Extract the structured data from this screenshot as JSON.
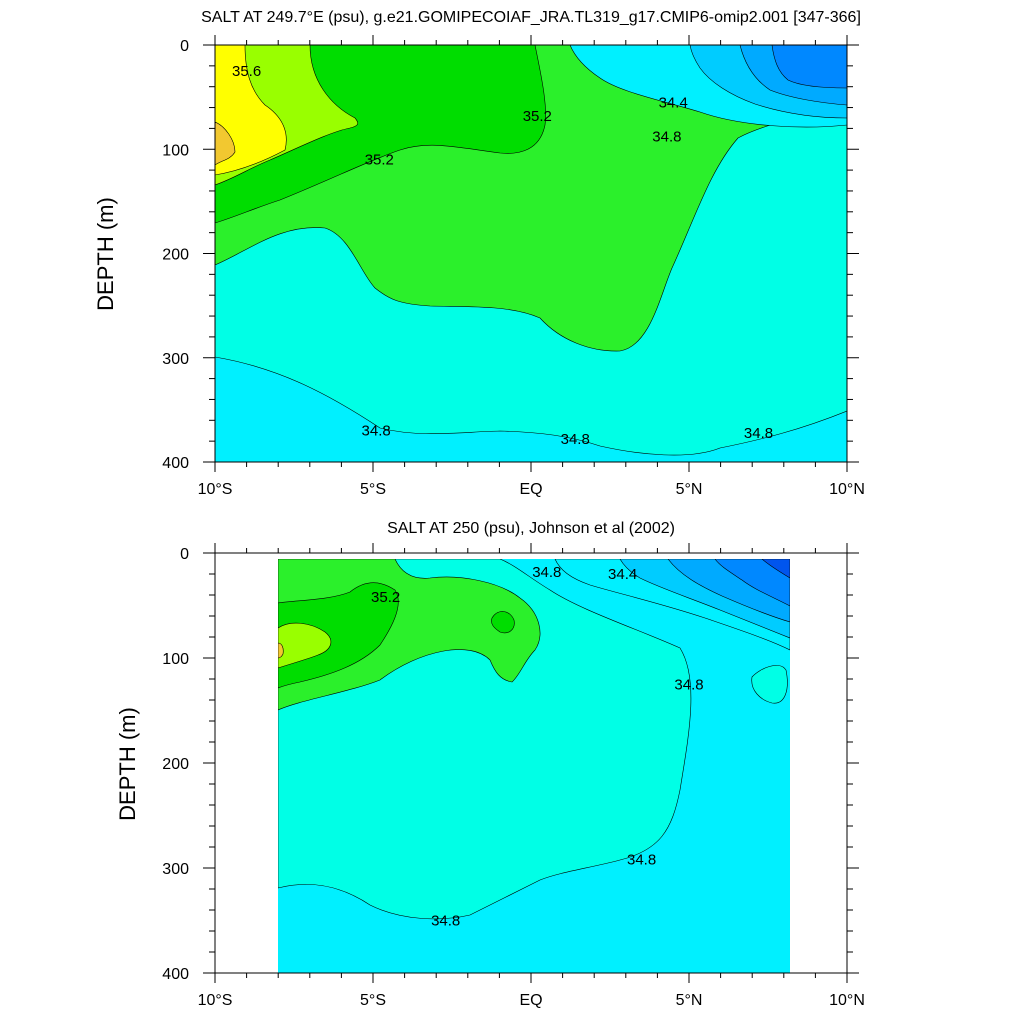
{
  "chart_data": [
    {
      "type": "contour",
      "title": "SALT AT 249.7°E (psu), g.e21.GOMIPECOIAF_JRA.TL319_g17.CMIP6-omip2.001 [347-366]",
      "ylabel": "DEPTH (m)",
      "xlabel": "",
      "xlim": [
        -10,
        10
      ],
      "ylim": [
        0,
        400
      ],
      "y_reversed": true,
      "x_ticks": [
        -10,
        -5,
        0,
        5,
        10
      ],
      "x_tick_labels": [
        "10°S",
        "5°S",
        "EQ",
        "5°N",
        "10°N"
      ],
      "y_ticks": [
        0,
        100,
        200,
        300,
        400
      ],
      "y_tick_labels": [
        "0",
        "100",
        "200",
        "300",
        "400"
      ],
      "data_extent_x": [
        -10,
        10
      ],
      "data_extent_y": [
        0,
        400
      ],
      "contour_labels": [
        {
          "text": "35.6",
          "x": -9.0,
          "y": 25
        },
        {
          "text": "35.2",
          "x": 0.2,
          "y": 68
        },
        {
          "text": "34.4",
          "x": 4.5,
          "y": 55
        },
        {
          "text": "34.8",
          "x": 4.3,
          "y": 88
        },
        {
          "text": "35.2",
          "x": -4.8,
          "y": 110
        },
        {
          "text": "34.8",
          "x": -4.9,
          "y": 370
        },
        {
          "text": "34.8",
          "x": 1.4,
          "y": 378
        },
        {
          "text": "34.8",
          "x": 7.2,
          "y": 372
        }
      ],
      "color_levels": [
        {
          "salinity": 33.9,
          "color": "#0088ff"
        },
        {
          "salinity": 34.1,
          "color": "#00aaff"
        },
        {
          "salinity": 34.3,
          "color": "#00ccff"
        },
        {
          "salinity": 34.5,
          "color": "#00f0ff"
        },
        {
          "salinity": 34.7,
          "color": "#00ffe6"
        },
        {
          "salinity": 34.9,
          "color": "#00ffbf"
        },
        {
          "salinity": 35.1,
          "color": "#2bf02b"
        },
        {
          "salinity": 35.3,
          "color": "#00dd00"
        },
        {
          "salinity": 35.5,
          "color": "#99ff00"
        },
        {
          "salinity": 35.7,
          "color": "#ffff00"
        },
        {
          "salinity": 35.9,
          "color": "#f2c830"
        }
      ]
    },
    {
      "type": "contour",
      "title": "SALT AT 250 (psu), Johnson et al (2002)",
      "ylabel": "DEPTH (m)",
      "xlabel": "",
      "xlim": [
        -10,
        10
      ],
      "ylim": [
        0,
        400
      ],
      "y_reversed": true,
      "x_ticks": [
        -10,
        -5,
        0,
        5,
        10
      ],
      "x_tick_labels": [
        "10°S",
        "5°S",
        "EQ",
        "5°N",
        "10°N"
      ],
      "y_ticks": [
        0,
        100,
        200,
        300,
        400
      ],
      "y_tick_labels": [
        "0",
        "100",
        "200",
        "300",
        "400"
      ],
      "data_extent_x": [
        -8,
        8.2
      ],
      "data_extent_y": [
        5,
        400
      ],
      "contour_labels": [
        {
          "text": "35.2",
          "x": -4.6,
          "y": 42
        },
        {
          "text": "34.8",
          "x": 0.5,
          "y": 18
        },
        {
          "text": "34.4",
          "x": 2.9,
          "y": 20
        },
        {
          "text": "34.8",
          "x": 5.0,
          "y": 125
        },
        {
          "text": "34.8",
          "x": 3.5,
          "y": 292
        },
        {
          "text": "34.8",
          "x": -2.7,
          "y": 350
        }
      ]
    }
  ]
}
